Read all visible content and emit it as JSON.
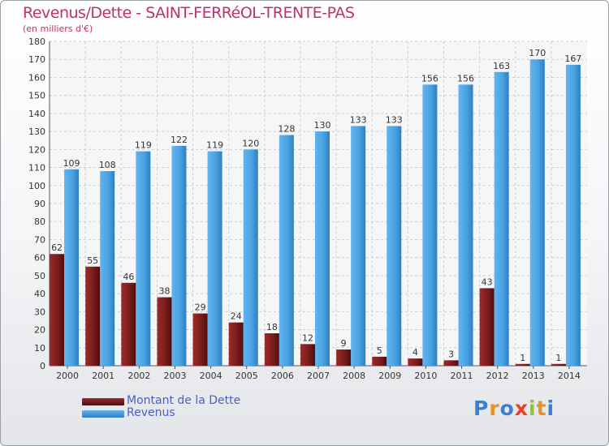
{
  "title": "Revenus/Dette - SAINT-FERRéOL-TRENTE-PAS",
  "subtitle": "(en milliers d'€)",
  "colors": {
    "dette": "#7a1d1d",
    "revenus": "#4aa3e2",
    "title": "#c0306a",
    "legend_text": "#4a5ec8"
  },
  "legend": [
    {
      "label": "Montant de la Dette",
      "series": "dette"
    },
    {
      "label": "Revenus",
      "series": "revenus"
    }
  ],
  "logo": {
    "text": "Proxiti",
    "colors": [
      "#3a7fd0",
      "#e8902a",
      "#3a7fd0",
      "#e8402a",
      "#8cc63f",
      "#e8902a",
      "#3a7fd0"
    ]
  },
  "chart_data": {
    "type": "bar",
    "title": "Revenus/Dette - SAINT-FERRéOL-TRENTE-PAS",
    "subtitle": "(en milliers d'€)",
    "categories": [
      "2000",
      "2001",
      "2002",
      "2003",
      "2004",
      "2005",
      "2006",
      "2007",
      "2008",
      "2009",
      "2010",
      "2011",
      "2012",
      "2013",
      "2014"
    ],
    "series": [
      {
        "name": "Montant de la Dette",
        "values": [
          62,
          55,
          46,
          38,
          29,
          24,
          18,
          12,
          9,
          5,
          4,
          3,
          43,
          1,
          1
        ]
      },
      {
        "name": "Revenus",
        "values": [
          109,
          108,
          119,
          122,
          119,
          120,
          128,
          130,
          133,
          133,
          156,
          156,
          163,
          170,
          167
        ]
      }
    ],
    "ylim": [
      0,
      180
    ],
    "yticks": [
      0,
      10,
      20,
      30,
      40,
      50,
      60,
      70,
      80,
      90,
      100,
      110,
      120,
      130,
      140,
      150,
      160,
      170,
      180
    ],
    "grid": true,
    "legend_position": "bottom-left"
  }
}
